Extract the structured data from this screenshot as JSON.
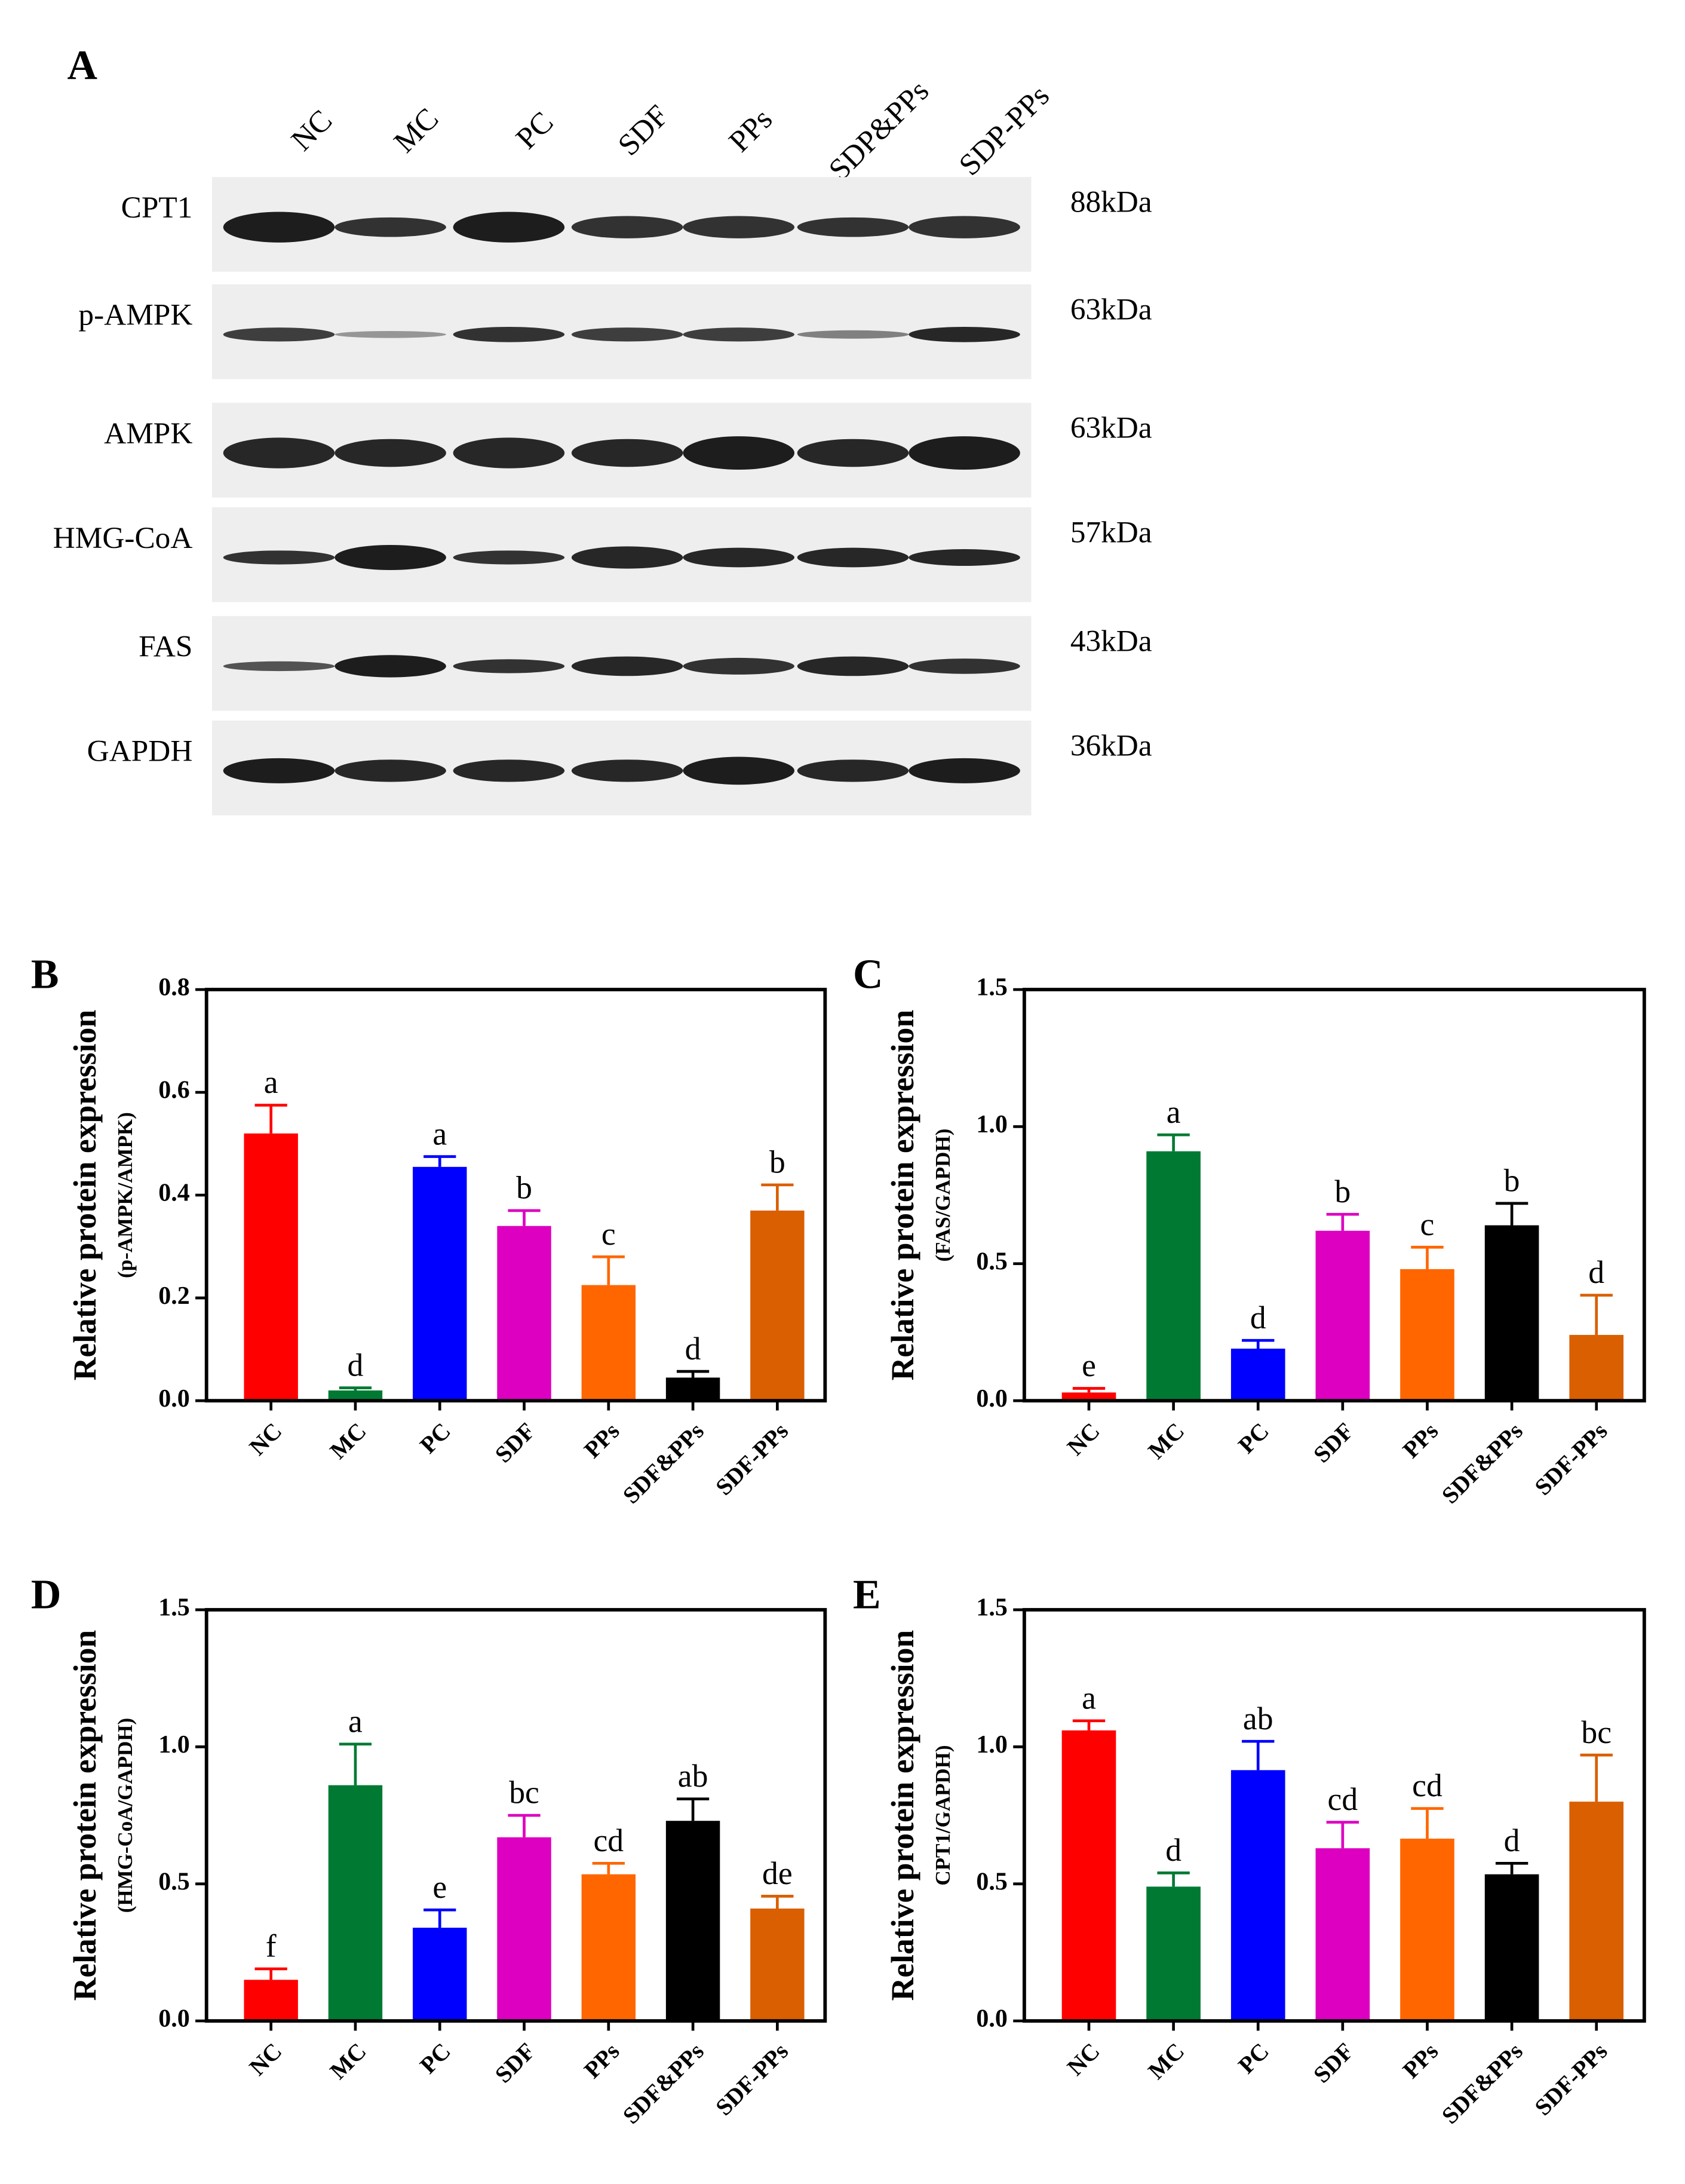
{
  "blot": {
    "panel": "A",
    "lanes": [
      "NC",
      "MC",
      "PC",
      "SDF",
      "PPs",
      "SDP&PPs",
      "SDP-PPs"
    ],
    "proteins": [
      {
        "name": "CPT1",
        "size": "88kDa"
      },
      {
        "name": "p-AMPK",
        "size": "63kDa"
      },
      {
        "name": "AMPK",
        "size": "63kDa"
      },
      {
        "name": "HMG-CoA",
        "size": "57kDa"
      },
      {
        "name": "FAS",
        "size": "43kDa"
      },
      {
        "name": "GAPDH",
        "size": "36kDa"
      }
    ]
  },
  "chart_data": [
    {
      "type": "bar",
      "panel": "B",
      "ylabel": "Relative protein expression",
      "ylabel_sub": "(p-AMPK/AMPK)",
      "categories": [
        "NC",
        "MC",
        "PC",
        "SDF",
        "PPs",
        "SDF&PPs",
        "SDF-PPs"
      ],
      "values": [
        0.52,
        0.02,
        0.455,
        0.34,
        0.225,
        0.045,
        0.37
      ],
      "errors": [
        0.055,
        0.005,
        0.02,
        0.03,
        0.055,
        0.012,
        0.05
      ],
      "annotations": [
        "a",
        "d",
        "a",
        "b",
        "c",
        "d",
        "b"
      ],
      "colors": [
        "#ff0000",
        "#007a33",
        "#0000ff",
        "#dd00c0",
        "#ff6600",
        "#000000",
        "#d95f00"
      ],
      "ylim": [
        0,
        0.8
      ],
      "yticks": [
        {
          "value": 0,
          "label": "0.0"
        },
        {
          "value": 0.2,
          "label": "0.2"
        },
        {
          "value": 0.4,
          "label": "0.4"
        },
        {
          "value": 0.6,
          "label": "0.6"
        },
        {
          "value": 0.8,
          "label": "0.8"
        }
      ]
    },
    {
      "type": "bar",
      "panel": "C",
      "ylabel": "Relative protein expression",
      "ylabel_sub": "(FAS/GAPDH)",
      "categories": [
        "NC",
        "MC",
        "PC",
        "SDF",
        "PPs",
        "SDF&PPs",
        "SDF-PPs"
      ],
      "values": [
        0.03,
        0.91,
        0.19,
        0.62,
        0.48,
        0.64,
        0.24
      ],
      "errors": [
        0.015,
        0.06,
        0.03,
        0.06,
        0.08,
        0.08,
        0.145
      ],
      "annotations": [
        "e",
        "a",
        "d",
        "b",
        "c",
        "b",
        "d"
      ],
      "colors": [
        "#ff0000",
        "#007a33",
        "#0000ff",
        "#dd00c0",
        "#ff6600",
        "#000000",
        "#d95f00"
      ],
      "ylim": [
        0,
        1.5
      ],
      "yticks": [
        {
          "value": 0,
          "label": "0.0"
        },
        {
          "value": 0.5,
          "label": "0.5"
        },
        {
          "value": 1,
          "label": "1.0"
        },
        1.5
      ]
    },
    {
      "type": "bar",
      "panel": "D",
      "ylabel": "Relative protein expression",
      "ylabel_sub": "(HMG-CoA/GAPDH)",
      "categories": [
        "NC",
        "MC",
        "PC",
        "SDF",
        "PPs",
        "SDF&PPs",
        "SDF-PPs"
      ],
      "values": [
        0.15,
        0.86,
        0.34,
        0.67,
        0.535,
        0.73,
        0.41
      ],
      "errors": [
        0.04,
        0.15,
        0.065,
        0.08,
        0.04,
        0.08,
        0.045
      ],
      "annotations": [
        "f",
        "a",
        "e",
        "bc",
        "cd",
        "ab",
        "de"
      ],
      "colors": [
        "#ff0000",
        "#007a33",
        "#0000ff",
        "#dd00c0",
        "#ff6600",
        "#000000",
        "#d95f00"
      ],
      "ylim": [
        0,
        1.5
      ],
      "yticks": [
        {
          "value": 0,
          "label": "0.0"
        },
        {
          "value": 0.5,
          "label": "0.5"
        },
        {
          "value": 1,
          "label": "1.0"
        },
        1.5
      ]
    },
    {
      "type": "bar",
      "panel": "E",
      "ylabel": "Relative protein expression",
      "ylabel_sub": "CPT1/GAPDH)",
      "categories": [
        "NC",
        "MC",
        "PC",
        "SDF",
        "PPs",
        "SDF&PPs",
        "SDF-PPs"
      ],
      "values": [
        1.06,
        0.49,
        0.915,
        0.63,
        0.665,
        0.535,
        0.8
      ],
      "errors": [
        0.035,
        0.05,
        0.105,
        0.095,
        0.11,
        0.04,
        0.17
      ],
      "annotations": [
        "a",
        "d",
        "ab",
        "cd",
        "cd",
        "d",
        "bc"
      ],
      "colors": [
        "#ff0000",
        "#007a33",
        "#0000ff",
        "#dd00c0",
        "#ff6600",
        "#000000",
        "#d95f00"
      ],
      "ylim": [
        0,
        1.5
      ],
      "yticks": [
        {
          "value": 0,
          "label": "0.0"
        },
        {
          "value": 0.5,
          "label": "0.5"
        },
        {
          "value": 1,
          "label": "1.0"
        },
        1.5
      ]
    }
  ]
}
